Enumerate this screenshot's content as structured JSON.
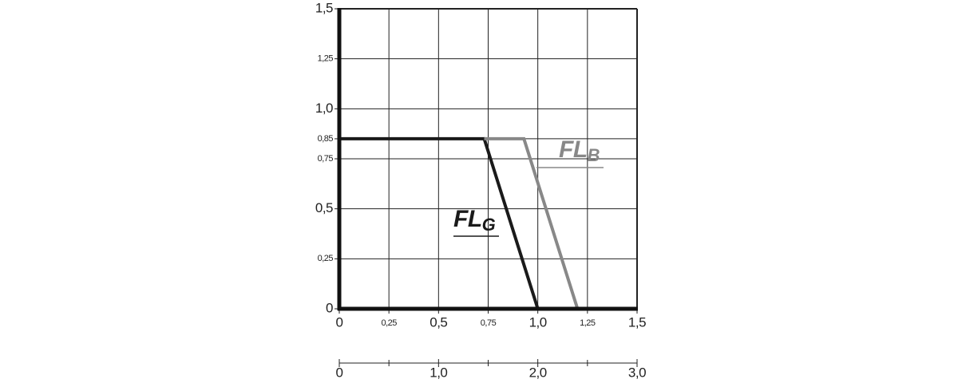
{
  "chart_data": {
    "type": "line",
    "xlim": [
      0,
      1.5
    ],
    "ylim": [
      0,
      1.5
    ],
    "xticks": [
      0,
      {
        "value": 0.25,
        "label": "0,25"
      },
      {
        "value": 0.5,
        "label": "0,5"
      },
      {
        "value": 0.75,
        "label": "0,75"
      },
      {
        "value": 1.0,
        "label": "1,0"
      },
      {
        "value": 1.25,
        "label": "1,25"
      },
      {
        "value": 1.5,
        "label": "1,5"
      }
    ],
    "yticks": [
      0,
      {
        "value": 0.25,
        "label": "0,25"
      },
      {
        "value": 0.5,
        "label": "0,5"
      },
      {
        "value": 0.75,
        "label": "0,75"
      },
      {
        "value": 0.85,
        "label": "0,85"
      },
      {
        "value": 1.0,
        "label": "1,0"
      },
      {
        "value": 1.25,
        "label": "1,25"
      },
      {
        "value": 1.5,
        "label": "1,5"
      }
    ],
    "x2lim": [
      0,
      3
    ],
    "x2ticks": [
      0,
      {
        "value": 1,
        "label": "1,0"
      },
      {
        "value": 2,
        "label": "2,0"
      },
      {
        "value": 3,
        "label": "3,0"
      }
    ],
    "x2minorticks": [
      0.5,
      1.5,
      2.5
    ],
    "grid": true,
    "series": [
      {
        "name": "FL",
        "subscript": "G",
        "color": "#1a1a1a",
        "x": [
          0,
          0.73,
          1.0
        ],
        "values": [
          0.85,
          0.85,
          0
        ]
      },
      {
        "name": "FL",
        "subscript": "B",
        "color": "#888888",
        "x": [
          0.73,
          0.93,
          1.2
        ],
        "values": [
          0.85,
          0.85,
          0
        ]
      }
    ]
  }
}
